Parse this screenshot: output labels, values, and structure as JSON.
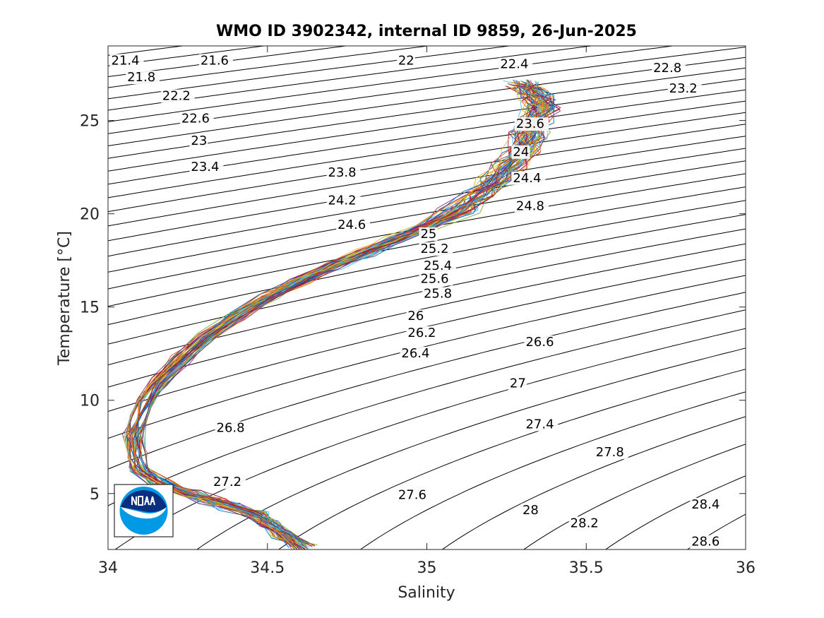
{
  "chart_data": {
    "type": "line",
    "title": "WMO ID 3902342, internal ID 9859, 26-Jun-2025",
    "xlabel": "Salinity",
    "ylabel": "Temperature [°C]",
    "xlim": [
      34,
      36
    ],
    "ylim": [
      2,
      29
    ],
    "xticks": [
      34,
      34.5,
      35,
      35.5,
      36
    ],
    "xtick_labels": [
      "34",
      "34.5",
      "35",
      "35.5",
      "36"
    ],
    "yticks": [
      5,
      10,
      15,
      20,
      25
    ],
    "ytick_labels": [
      "5",
      "10",
      "15",
      "20",
      "25"
    ],
    "grid": false,
    "logo": "noaa-logo",
    "contour_levels": [
      21.4,
      21.6,
      21.8,
      22,
      22.2,
      22.4,
      22.6,
      22.8,
      23,
      23.2,
      23.4,
      23.6,
      23.8,
      24,
      24.2,
      24.4,
      24.6,
      24.8,
      25,
      25.2,
      25.4,
      25.6,
      25.8,
      26,
      26.2,
      26.4,
      26.6,
      26.8,
      27,
      27.2,
      27.4,
      27.6,
      27.8,
      28,
      28.2,
      28.4,
      28.6
    ],
    "contour_labels": [
      {
        "text": "21.4",
        "s": 34.01,
        "t": 28.0
      },
      {
        "text": "21.6",
        "s": 34.29,
        "t": 28.0
      },
      {
        "text": "21.8",
        "s": 34.06,
        "t": 27.1
      },
      {
        "text": "22",
        "s": 34.91,
        "t": 28.0
      },
      {
        "text": "22.2",
        "s": 34.17,
        "t": 26.1
      },
      {
        "text": "22.4",
        "s": 35.23,
        "t": 27.8
      },
      {
        "text": "22.6",
        "s": 34.23,
        "t": 24.9
      },
      {
        "text": "22.8",
        "s": 35.71,
        "t": 27.6
      },
      {
        "text": "23",
        "s": 34.26,
        "t": 23.7
      },
      {
        "text": "23.2",
        "s": 35.76,
        "t": 26.5
      },
      {
        "text": "23.4",
        "s": 34.26,
        "t": 22.3
      },
      {
        "text": "23.6",
        "s": 35.28,
        "t": 24.6
      },
      {
        "text": "23.8",
        "s": 34.69,
        "t": 22.0
      },
      {
        "text": "24",
        "s": 35.27,
        "t": 23.1
      },
      {
        "text": "24.2",
        "s": 34.69,
        "t": 20.5
      },
      {
        "text": "24.4",
        "s": 35.27,
        "t": 21.7
      },
      {
        "text": "24.6",
        "s": 34.72,
        "t": 19.2
      },
      {
        "text": "24.8",
        "s": 35.28,
        "t": 20.2
      },
      {
        "text": "25",
        "s": 34.98,
        "t": 18.7
      },
      {
        "text": "25.2",
        "s": 34.98,
        "t": 17.9
      },
      {
        "text": "25.4",
        "s": 34.99,
        "t": 17.0
      },
      {
        "text": "25.6",
        "s": 34.98,
        "t": 16.3
      },
      {
        "text": "25.8",
        "s": 34.99,
        "t": 15.5
      },
      {
        "text": "26",
        "s": 34.94,
        "t": 14.3
      },
      {
        "text": "26.2",
        "s": 34.94,
        "t": 13.4
      },
      {
        "text": "26.4",
        "s": 34.92,
        "t": 12.3
      },
      {
        "text": "26.6",
        "s": 35.31,
        "t": 12.9
      },
      {
        "text": "26.8",
        "s": 34.34,
        "t": 8.3
      },
      {
        "text": "27",
        "s": 35.26,
        "t": 10.7
      },
      {
        "text": "27.2",
        "s": 34.33,
        "t": 5.4
      },
      {
        "text": "27.4",
        "s": 35.31,
        "t": 8.5
      },
      {
        "text": "27.6",
        "s": 34.91,
        "t": 4.7
      },
      {
        "text": "27.8",
        "s": 35.53,
        "t": 7.0
      },
      {
        "text": "28",
        "s": 35.3,
        "t": 3.9
      },
      {
        "text": "28.2",
        "s": 35.45,
        "t": 3.2
      },
      {
        "text": "28.4",
        "s": 35.83,
        "t": 4.2
      },
      {
        "text": "28.6",
        "s": 35.83,
        "t": 2.2
      }
    ],
    "mean_profile": {
      "salinity": [
        34.61,
        34.55,
        34.5,
        34.46,
        34.39,
        34.33,
        34.25,
        34.17,
        34.1,
        34.09,
        34.08,
        34.1,
        34.12,
        34.16,
        34.23,
        34.31,
        34.4,
        34.5,
        34.6,
        34.7,
        34.8,
        34.9,
        35.0,
        35.1,
        35.16,
        35.22,
        35.26,
        35.3,
        35.32,
        35.34,
        35.36,
        35.35,
        35.33,
        35.3
      ],
      "temperature": [
        2.1,
        2.8,
        3.4,
        3.9,
        4.3,
        4.6,
        5.0,
        5.5,
        6.3,
        7.0,
        8.0,
        9.0,
        10.0,
        11.0,
        12.2,
        13.4,
        14.5,
        15.5,
        16.4,
        17.2,
        17.9,
        18.6,
        19.3,
        20.2,
        21.0,
        21.8,
        22.6,
        23.4,
        24.2,
        25.0,
        25.7,
        26.2,
        26.6,
        27.0
      ]
    },
    "profile_count": 60,
    "series_colors": [
      "#0072BD",
      "#D95319",
      "#EDB120",
      "#7E2F8E",
      "#77AC30",
      "#4DBEEE",
      "#A2142F"
    ]
  }
}
